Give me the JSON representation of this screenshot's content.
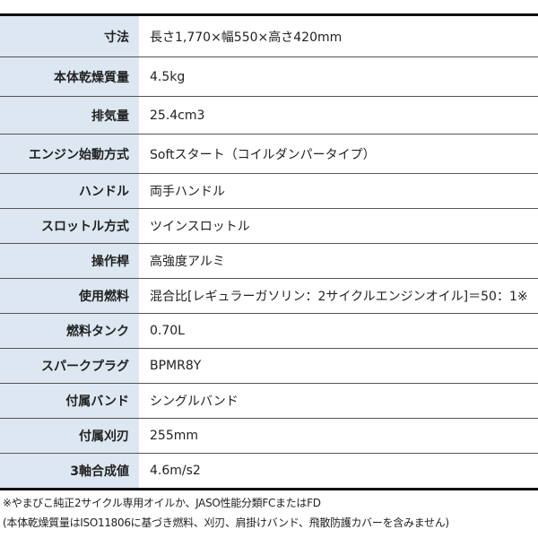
{
  "specs": [
    {
      "label": "寸法",
      "value": "長さ1,770×幅550×高さ420mm"
    },
    {
      "label": "本体乾燥質量",
      "value": "4.5kg"
    },
    {
      "label": "排気量",
      "value": "25.4cm3"
    },
    {
      "label": "エンジン始動方式",
      "value": "Softスタート（コイルダンパータイプ）"
    },
    {
      "label": "ハンドル",
      "value": "両手ハンドル"
    },
    {
      "label": "スロットル方式",
      "value": "ツインスロットル"
    },
    {
      "label": "操作桿",
      "value": "高強度アルミ"
    },
    {
      "label": "使用燃料",
      "value": "混合比[レギュラーガソリン：2サイクルエンジンオイル]＝50：1※"
    },
    {
      "label": "燃料タンク",
      "value": "0.70L"
    },
    {
      "label": "スパークプラグ",
      "value": "BPMR8Y"
    },
    {
      "label": "付属バンド",
      "value": "シングルバンド"
    },
    {
      "label": "付属刈刃",
      "value": "255mm"
    },
    {
      "label": "3軸合成値",
      "value": "4.6m/s2"
    }
  ],
  "notes": [
    "※やまびこ純正2サイクル専用オイルか、JASO性能分類FCまたはFD",
    "(本体乾燥質量はISO11806に基づき燃料、刈刃、肩掛けバンド、飛散防護カバーを含みません)"
  ],
  "colors": {
    "label_bg": "#dce7f1",
    "border": "#111111"
  }
}
